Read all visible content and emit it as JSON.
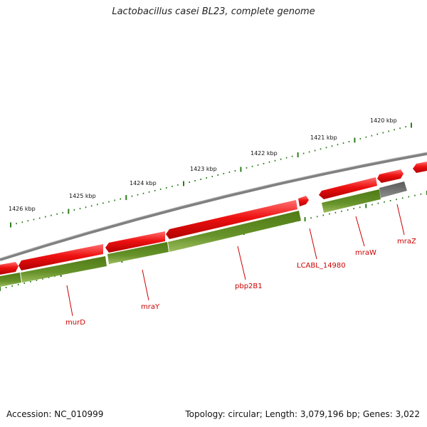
{
  "title": "Lactobacillus casei BL23, complete genome",
  "footer": {
    "accession": "Accession: NC_010999",
    "summary": "Topology: circular; Length: 3,079,196 bp; Genes: 3,022"
  },
  "colors": {
    "forward_gene": "#ee1111",
    "reverse_gene": "#5c8a1c",
    "pseudo_gene": "#707070",
    "backbone": "#8a8a8a",
    "tick": "#2e7d1e",
    "label": "#cc0000"
  },
  "kbp_ticks": [
    "1420 kbp",
    "1421 kbp",
    "1422 kbp",
    "1423 kbp",
    "1424 kbp",
    "1425 kbp",
    "1426 kbp"
  ],
  "gene_labels": [
    "mraZ",
    "mraW",
    "LCABL_14980",
    "pbp2B1",
    "mraY",
    "murD"
  ]
}
